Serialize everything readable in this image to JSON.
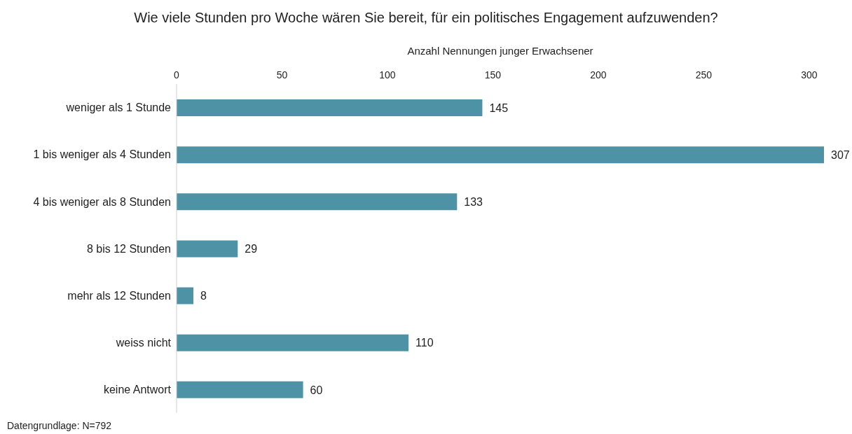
{
  "chart_data": {
    "type": "bar",
    "orientation": "horizontal",
    "title": "Wie viele Stunden pro Woche wären Sie bereit, für ein politisches Engagement aufzuwenden?",
    "xlabel": "Anzahl Nennungen junger Erwachsener",
    "categories": [
      "weniger als 1 Stunde",
      "1 bis weniger als 4 Stunden",
      "4 bis weniger als 8 Stunden",
      "8 bis 12 Stunden",
      "mehr als 12 Stunden",
      "weiss nicht",
      "keine Antwort"
    ],
    "values": [
      145,
      307,
      133,
      29,
      8,
      110,
      60
    ],
    "color": "#4d93a5",
    "xlim": [
      0,
      307
    ],
    "xticks": [
      0,
      50,
      100,
      150,
      200,
      250,
      300
    ],
    "data_labels": true,
    "annotations": [
      "Datengrundlage: N=792"
    ]
  }
}
